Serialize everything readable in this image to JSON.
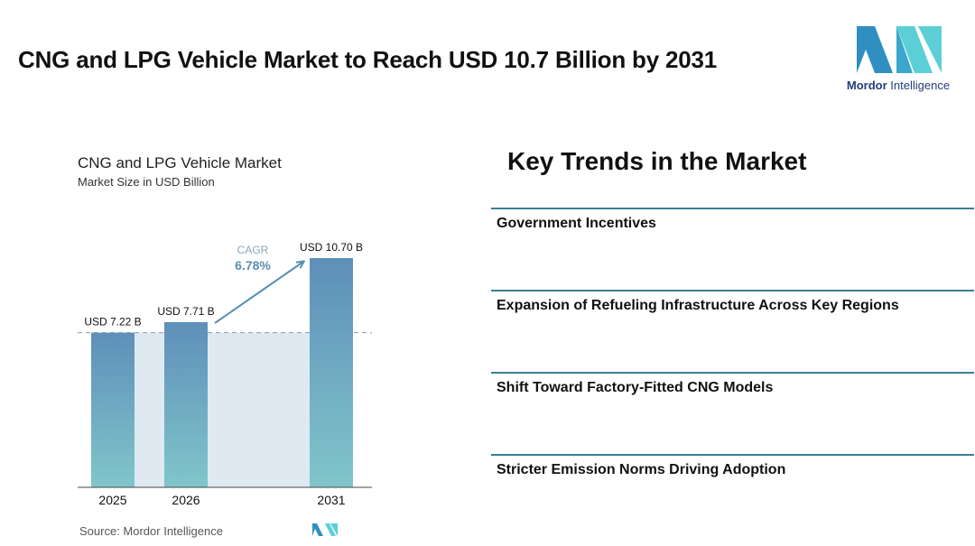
{
  "page": {
    "title": "CNG and LPG Vehicle Market to Reach USD 10.7 Billion by 2031"
  },
  "brand": {
    "name_bold": "Mordor",
    "name_rest": " Intelligence",
    "logo_icon": "mordor-intelligence-logo",
    "colors": {
      "dark": "#2f8fc1",
      "light": "#5ccfd6"
    }
  },
  "chart": {
    "title": "CNG and LPG Vehicle Market",
    "subtitle": "Market Size in USD Billion",
    "source": "Source:  Mordor Intelligence"
  },
  "chart_data": {
    "type": "bar",
    "title": "CNG and LPG Vehicle Market",
    "subtitle": "Market Size in USD Billion",
    "categories": [
      "2025",
      "2026",
      "2031"
    ],
    "values": [
      7.22,
      7.71,
      10.7
    ],
    "data_labels": [
      "USD 7.22 B",
      "USD 7.71 B",
      "USD 10.70 B"
    ],
    "unit": "USD Billion",
    "cagr_label": "CAGR",
    "cagr_value": "6.78%",
    "ylim": [
      0,
      10.7
    ],
    "grid": false,
    "bar_gradient": {
      "top": "#5e8fb9",
      "bottom": "#80c6ca"
    },
    "baseline_shade": "#dfe9f2"
  },
  "trends": {
    "title": "Key Trends in the Market",
    "items": [
      "Government Incentives",
      "Expansion of Refueling Infrastructure Across Key Regions",
      "Shift Toward Factory-Fitted CNG Models",
      "Stricter Emission Norms Driving Adoption"
    ],
    "divider_color": "#3a7f96"
  }
}
